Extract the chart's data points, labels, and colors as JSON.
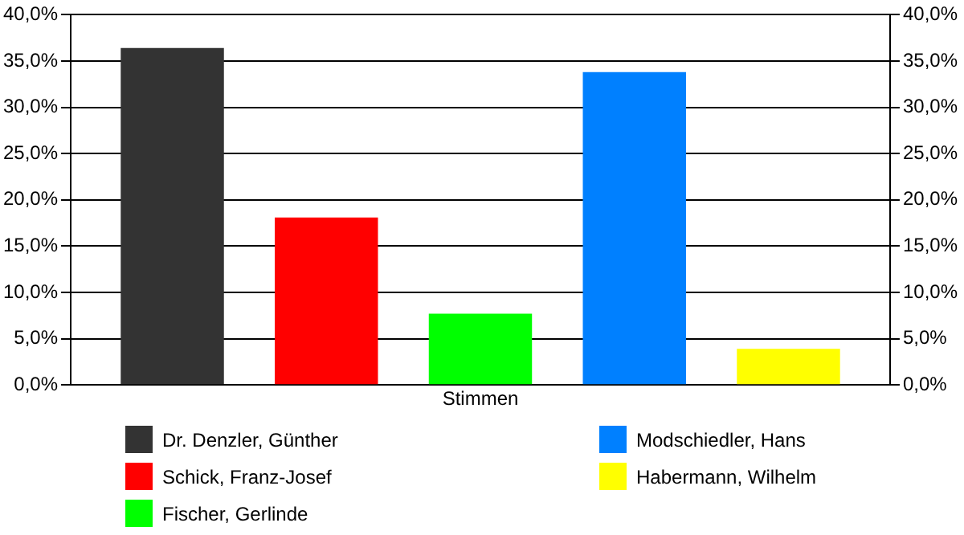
{
  "chart_data": {
    "type": "bar",
    "categories": [
      "Stimmen"
    ],
    "series": [
      {
        "name": "Dr. Denzler, Günther",
        "color": "#333333",
        "values": [
          36.4
        ]
      },
      {
        "name": "Schick, Franz-Josef",
        "color": "#ff0000",
        "values": [
          18.1
        ]
      },
      {
        "name": "Fischer, Gerlinde",
        "color": "#00ff00",
        "values": [
          7.7
        ]
      },
      {
        "name": "Modschiedler, Hans",
        "color": "#0080ff",
        "values": [
          33.8
        ]
      },
      {
        "name": "Habermann, Wilhelm",
        "color": "#ffff00",
        "values": [
          3.9
        ]
      }
    ],
    "ylim": [
      0,
      40
    ],
    "yticks": [
      {
        "value": 0,
        "label": "0,0%"
      },
      {
        "value": 5,
        "label": "5,0%"
      },
      {
        "value": 10,
        "label": "10,0%"
      },
      {
        "value": 15,
        "label": "15,0%"
      },
      {
        "value": 20,
        "label": "20,0%"
      },
      {
        "value": 25,
        "label": "25,0%"
      },
      {
        "value": 30,
        "label": "30,0%"
      },
      {
        "value": 35,
        "label": "35,0%"
      },
      {
        "value": 40,
        "label": "40,0%"
      }
    ],
    "grid": "y",
    "legend": "bottom"
  }
}
